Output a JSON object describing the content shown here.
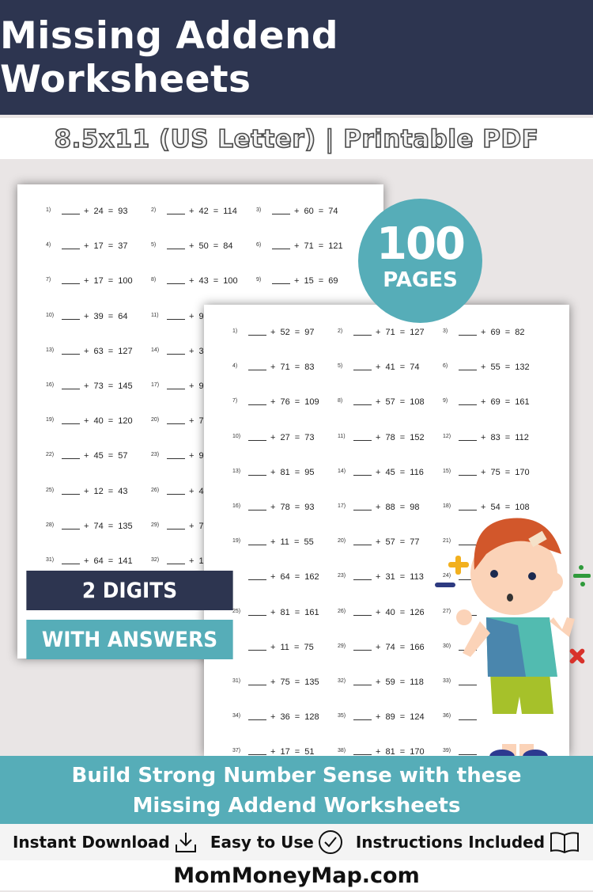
{
  "header": {
    "title": "Missing Addend Worksheets"
  },
  "subtitle": "8.5x11 (US Letter) | Printable PDF",
  "badge": {
    "count": "100",
    "label": "PAGES"
  },
  "banners": {
    "digits": "2 DIGITS",
    "answers": "WITH ANSWERS"
  },
  "back_sheet": {
    "rows": [
      [
        [
          "1)",
          "24",
          "93"
        ],
        [
          "2)",
          "42",
          "114"
        ],
        [
          "3)",
          "60",
          "74"
        ]
      ],
      [
        [
          "4)",
          "17",
          "37"
        ],
        [
          "5)",
          "50",
          "84"
        ],
        [
          "6)",
          "71",
          "121"
        ]
      ],
      [
        [
          "7)",
          "17",
          "100"
        ],
        [
          "8)",
          "43",
          "100"
        ],
        [
          "9)",
          "15",
          "69"
        ]
      ],
      [
        [
          "10)",
          "39",
          "64"
        ],
        [
          "11)",
          "9",
          ""
        ]
      ],
      [
        [
          "13)",
          "63",
          "127"
        ],
        [
          "14)",
          "3",
          ""
        ]
      ],
      [
        [
          "16)",
          "73",
          "145"
        ],
        [
          "17)",
          "9",
          ""
        ]
      ],
      [
        [
          "19)",
          "40",
          "120"
        ],
        [
          "20)",
          "7",
          ""
        ]
      ],
      [
        [
          "22)",
          "45",
          "57"
        ],
        [
          "23)",
          "9",
          ""
        ]
      ],
      [
        [
          "25)",
          "12",
          "43"
        ],
        [
          "26)",
          "4",
          ""
        ]
      ],
      [
        [
          "28)",
          "74",
          "135"
        ],
        [
          "29)",
          "7",
          ""
        ]
      ],
      [
        [
          "31)",
          "64",
          "141"
        ],
        [
          "32)",
          "1",
          ""
        ]
      ]
    ]
  },
  "front_sheet": {
    "rows": [
      [
        [
          "1)",
          "52",
          "97"
        ],
        [
          "2)",
          "71",
          "127"
        ],
        [
          "3)",
          "69",
          "82"
        ]
      ],
      [
        [
          "4)",
          "71",
          "83"
        ],
        [
          "5)",
          "41",
          "74"
        ],
        [
          "6)",
          "55",
          "132"
        ]
      ],
      [
        [
          "7)",
          "76",
          "109"
        ],
        [
          "8)",
          "57",
          "108"
        ],
        [
          "9)",
          "69",
          "161"
        ]
      ],
      [
        [
          "10)",
          "27",
          "73"
        ],
        [
          "11)",
          "78",
          "152"
        ],
        [
          "12)",
          "83",
          "112"
        ]
      ],
      [
        [
          "13)",
          "81",
          "95"
        ],
        [
          "14)",
          "45",
          "116"
        ],
        [
          "15)",
          "75",
          "170"
        ]
      ],
      [
        [
          "16)",
          "78",
          "93"
        ],
        [
          "17)",
          "88",
          "98"
        ],
        [
          "18)",
          "54",
          "108"
        ]
      ],
      [
        [
          "19)",
          "11",
          "55"
        ],
        [
          "20)",
          "57",
          "77"
        ],
        [
          "21)",
          "",
          ""
        ]
      ],
      [
        [
          "",
          "64",
          "162"
        ],
        [
          "23)",
          "31",
          "113"
        ],
        [
          "24)",
          "",
          ""
        ]
      ],
      [
        [
          "25)",
          "81",
          "161"
        ],
        [
          "26)",
          "40",
          "126"
        ],
        [
          "27)",
          "",
          ""
        ]
      ],
      [
        [
          "",
          "11",
          "75"
        ],
        [
          "29)",
          "74",
          "166"
        ],
        [
          "30)",
          "",
          ""
        ]
      ],
      [
        [
          "31)",
          "75",
          "135"
        ],
        [
          "32)",
          "59",
          "118"
        ],
        [
          "33)",
          "",
          ""
        ]
      ],
      [
        [
          "34)",
          "36",
          "128"
        ],
        [
          "35)",
          "89",
          "124"
        ],
        [
          "36)",
          "",
          ""
        ]
      ],
      [
        [
          "37)",
          "17",
          "51"
        ],
        [
          "38)",
          "81",
          "170"
        ],
        [
          "39)",
          "",
          ""
        ]
      ]
    ]
  },
  "tagline": {
    "line1": "Build Strong Number Sense with these",
    "line2": "Missing Addend Worksheets"
  },
  "features": [
    {
      "label": "Instant Download",
      "icon": "download-icon"
    },
    {
      "label": "Easy to Use",
      "icon": "check-circle-icon"
    },
    {
      "label": "Instructions Included",
      "icon": "open-book-icon"
    }
  ],
  "footer": {
    "site": "MomMoneyMap.com"
  },
  "colors": {
    "navy": "#2d3550",
    "teal": "#56adb8",
    "background": "#e9e5e5"
  }
}
